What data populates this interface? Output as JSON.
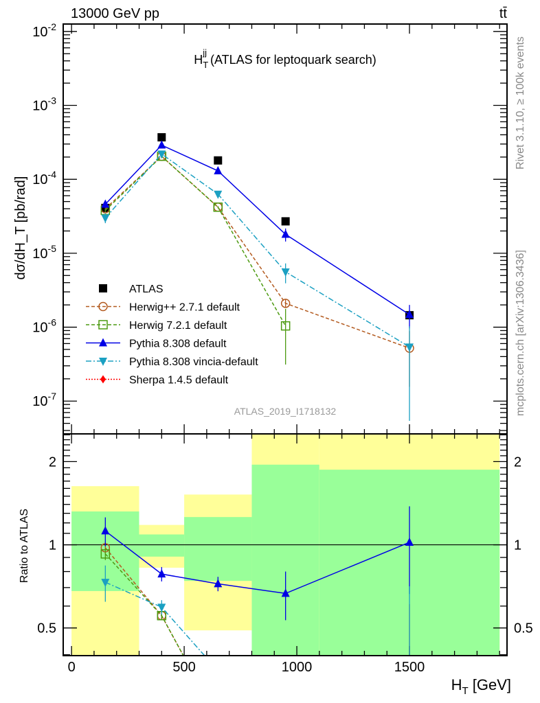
{
  "header": {
    "energy_label": "13000 GeV pp",
    "process_label": "tt̄",
    "rivet_label": "Rivet 3.1.10, ≥ 100k events",
    "mcplots_label": "mcplots.cern.ch [arXiv:1306.3436]",
    "analysis_id": "ATLAS_2019_I1718132"
  },
  "chart_data": [
    {
      "type": "line",
      "title_main": "H",
      "title_sub": "T",
      "title_sup": "jj",
      "title_rest": " (ATLAS for leptoquark search)",
      "ylabel": "dσ/dH_T [pb/rad]",
      "yscale": "log",
      "ylim": [
        3.6e-08,
        0.0126
      ],
      "xlim": [
        -37,
        1933
      ],
      "yticks": [
        {
          "base": "10",
          "exp": "-7",
          "v": 1e-07
        },
        {
          "base": "10",
          "exp": "-6",
          "v": 1e-06
        },
        {
          "base": "10",
          "exp": "-5",
          "v": 1e-05
        },
        {
          "base": "10",
          "exp": "-4",
          "v": 0.0001
        },
        {
          "base": "10",
          "exp": "-3",
          "v": 0.001
        },
        {
          "base": "10",
          "exp": "-2",
          "v": 0.01
        }
      ],
      "legend_position": "lower-left",
      "x": [
        150,
        400,
        650,
        950,
        1500
      ],
      "series": [
        {
          "name": "ATLAS",
          "color": "#000000",
          "marker": "square",
          "line": "none",
          "values": [
            4.1e-05,
            0.00037,
            0.00018,
            2.7e-05,
            1.45e-06
          ],
          "relerr": [
            0.05,
            0.03,
            0.03,
            0.05,
            0.1
          ]
        },
        {
          "name": "Herwig++ 2.7.1 default",
          "color": "#b35a1f",
          "marker": "open-circle",
          "line": "dashed",
          "values": [
            4e-05,
            0.000205,
            4.2e-05,
            2.1e-06,
            5.2e-07
          ],
          "relerr": [
            0.05,
            0.03,
            0.03,
            0.12,
            0.7
          ]
        },
        {
          "name": "Herwig 7.2.1 default",
          "color": "#4c9a10",
          "marker": "open-square",
          "line": "dashed",
          "values": [
            3.8e-05,
            0.000205,
            4.2e-05,
            1.04e-06,
            null
          ],
          "relerr": [
            0.05,
            0.03,
            0.03,
            0.7,
            0
          ]
        },
        {
          "name": "Pythia 8.308 default",
          "color": "#0000e6",
          "marker": "triangle-up",
          "line": "solid",
          "values": [
            4.6e-05,
            0.00029,
            0.00013,
            1.8e-05,
            1.48e-06
          ],
          "relerr": [
            0.12,
            0.06,
            0.06,
            0.2,
            0.35
          ]
        },
        {
          "name": "Pythia 8.308 vincia-default",
          "color": "#1ba0c2",
          "marker": "triangle-down",
          "line": "dashdot",
          "values": [
            3e-05,
            0.00022,
            6.3e-05,
            5.6e-06,
            5.4e-07
          ],
          "relerr": [
            0.15,
            0.06,
            0.05,
            0.3,
            0.9
          ]
        },
        {
          "name": "Sherpa 1.4.5 default",
          "color": "#ff0000",
          "marker": "diamond",
          "line": "dotted",
          "values": [
            null,
            null,
            null,
            null,
            null
          ],
          "relerr": [
            0,
            0,
            0,
            0,
            0
          ]
        }
      ]
    },
    {
      "type": "line",
      "ylabel": "Ratio to ATLAS",
      "xlabel_main": "H",
      "xlabel_sub": "T",
      "xlabel_rest": " [GeV]",
      "yscale": "log",
      "ylim": [
        0.397,
        2.52
      ],
      "xlim": [
        -37,
        1933
      ],
      "xticks": [
        "0",
        "500",
        "1000",
        "1500"
      ],
      "xtick_values": [
        0,
        500,
        1000,
        1500
      ],
      "yticks": [
        "0.5",
        "1",
        "2"
      ],
      "ytick_values": [
        0.5,
        1,
        2
      ],
      "bands": {
        "edges": [
          0,
          300,
          500,
          800,
          1100,
          1900
        ],
        "yellow_color": "#ffff99",
        "green_color": "#99ff99",
        "yellow_lo": [
          0.3,
          0.826,
          0.49,
          0.3,
          0.3
        ],
        "yellow_hi": [
          1.63,
          1.18,
          1.52,
          3.0,
          3.0
        ],
        "green_lo": [
          0.68,
          0.906,
          0.74,
          0.3,
          0.3
        ],
        "green_hi": [
          1.32,
          1.09,
          1.26,
          1.95,
          1.87
        ]
      }
    }
  ]
}
